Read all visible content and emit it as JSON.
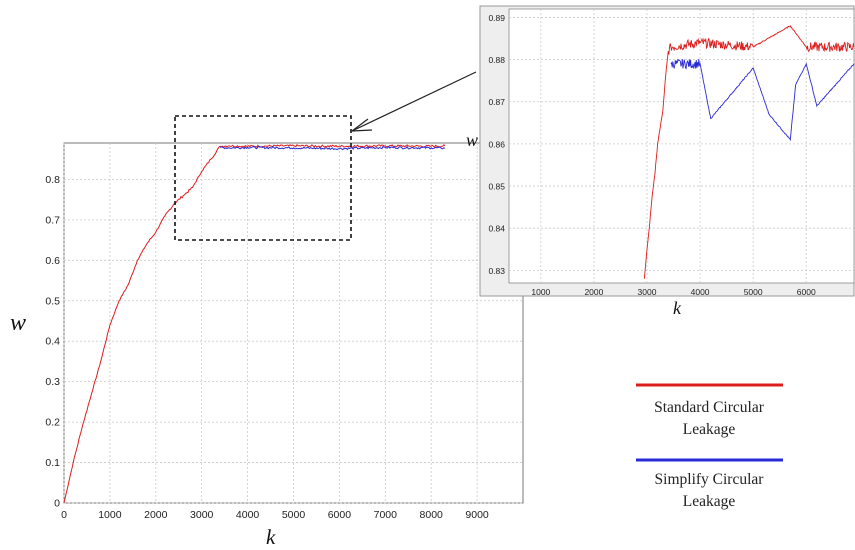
{
  "chart_data": [
    {
      "id": "main",
      "type": "line",
      "xlabel": "k",
      "ylabel": "w",
      "xlim": [
        0,
        10000
      ],
      "ylim": [
        0,
        0.89
      ],
      "xticks": [
        "0",
        "1000",
        "2000",
        "3000",
        "4000",
        "5000",
        "6000",
        "7000",
        "8000",
        "9000"
      ],
      "yticks": [
        "0",
        "0.1",
        "0.2",
        "0.3",
        "0.4",
        "0.5",
        "0.6",
        "0.7",
        "0.8"
      ],
      "grid": true,
      "series": [
        {
          "name": "Standard Circular Leakage",
          "color": "#dd1c1c",
          "x": [
            0,
            200,
            400,
            600,
            800,
            1000,
            1200,
            1400,
            1600,
            1800,
            2000,
            2200,
            2400,
            2600,
            2800,
            3000,
            3200,
            3400,
            3600,
            4000,
            5000,
            6000,
            7000,
            8000,
            8300
          ],
          "y": [
            0,
            0.1,
            0.19,
            0.27,
            0.35,
            0.44,
            0.5,
            0.54,
            0.6,
            0.64,
            0.67,
            0.71,
            0.74,
            0.76,
            0.78,
            0.82,
            0.85,
            0.882,
            0.883,
            0.882,
            0.883,
            0.882,
            0.883,
            0.882,
            0.883
          ]
        },
        {
          "name": "Simplify Circular Leakage",
          "color": "#2a2ad4",
          "x": [
            3400,
            3600,
            4000,
            5000,
            6000,
            7000,
            8000,
            8300
          ],
          "y": [
            0.879,
            0.878,
            0.879,
            0.878,
            0.876,
            0.879,
            0.878,
            0.877
          ]
        }
      ]
    },
    {
      "id": "inset",
      "type": "line",
      "xlabel": "k",
      "ylabel": "w",
      "xlim": [
        400,
        6900
      ],
      "ylim": [
        0.827,
        0.892
      ],
      "xticks": [
        "1000",
        "2000",
        "3000",
        "4000",
        "5000",
        "6000"
      ],
      "yticks": [
        "0.83",
        "0.84",
        "0.85",
        "0.86",
        "0.87",
        "0.88",
        "0.89"
      ],
      "grid": true,
      "series": [
        {
          "name": "Standard Circular Leakage",
          "color": "#dd1c1c",
          "x": [
            2950,
            3000,
            3050,
            3100,
            3150,
            3200,
            3250,
            3300,
            3350,
            3400,
            3450,
            4000,
            5000,
            5700,
            6000,
            6900
          ],
          "y": [
            0.828,
            0.835,
            0.841,
            0.848,
            0.853,
            0.86,
            0.864,
            0.868,
            0.876,
            0.882,
            0.883,
            0.884,
            0.883,
            0.888,
            0.883,
            0.883
          ]
        },
        {
          "name": "Simplify Circular Leakage",
          "color": "#2a2ad4",
          "x": [
            3450,
            4000,
            4200,
            5000,
            5300,
            5700,
            5800,
            6000,
            6200,
            6900
          ],
          "y": [
            0.879,
            0.879,
            0.866,
            0.878,
            0.867,
            0.861,
            0.874,
            0.879,
            0.869,
            0.879
          ]
        }
      ]
    }
  ],
  "legend": {
    "items": [
      {
        "label_line1": "Standard Circular",
        "label_line2": "Leakage",
        "color": "#dd1c1c"
      },
      {
        "label_line1": "Simplify Circular",
        "label_line2": "Leakage",
        "color": "#2a2ad4"
      }
    ]
  }
}
